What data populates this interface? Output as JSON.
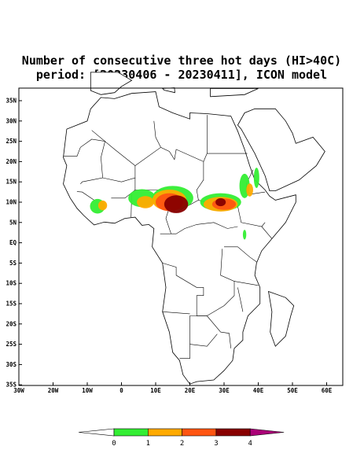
{
  "title": [
    "Number of consecutive three hot days (HI>40C)",
    "period: [20230406 - 20230411], ICON model"
  ],
  "lat_ticks": [
    "35N",
    "30N",
    "25N",
    "20N",
    "15N",
    "10N",
    "5N",
    "EQ",
    "5S",
    "10S",
    "15S",
    "20S",
    "25S",
    "30S",
    "35S"
  ],
  "lon_ticks": [
    "30W",
    "20W",
    "10W",
    "0",
    "10E",
    "20E",
    "30E",
    "40E",
    "50E",
    "60E"
  ],
  "colorbar": {
    "labels": [
      "0",
      "1",
      "2",
      "3",
      "4"
    ],
    "colors": [
      "#ffffff",
      "#33ee33",
      "#ffaa00",
      "#ff5511",
      "#880000",
      "#aa0077"
    ]
  }
}
